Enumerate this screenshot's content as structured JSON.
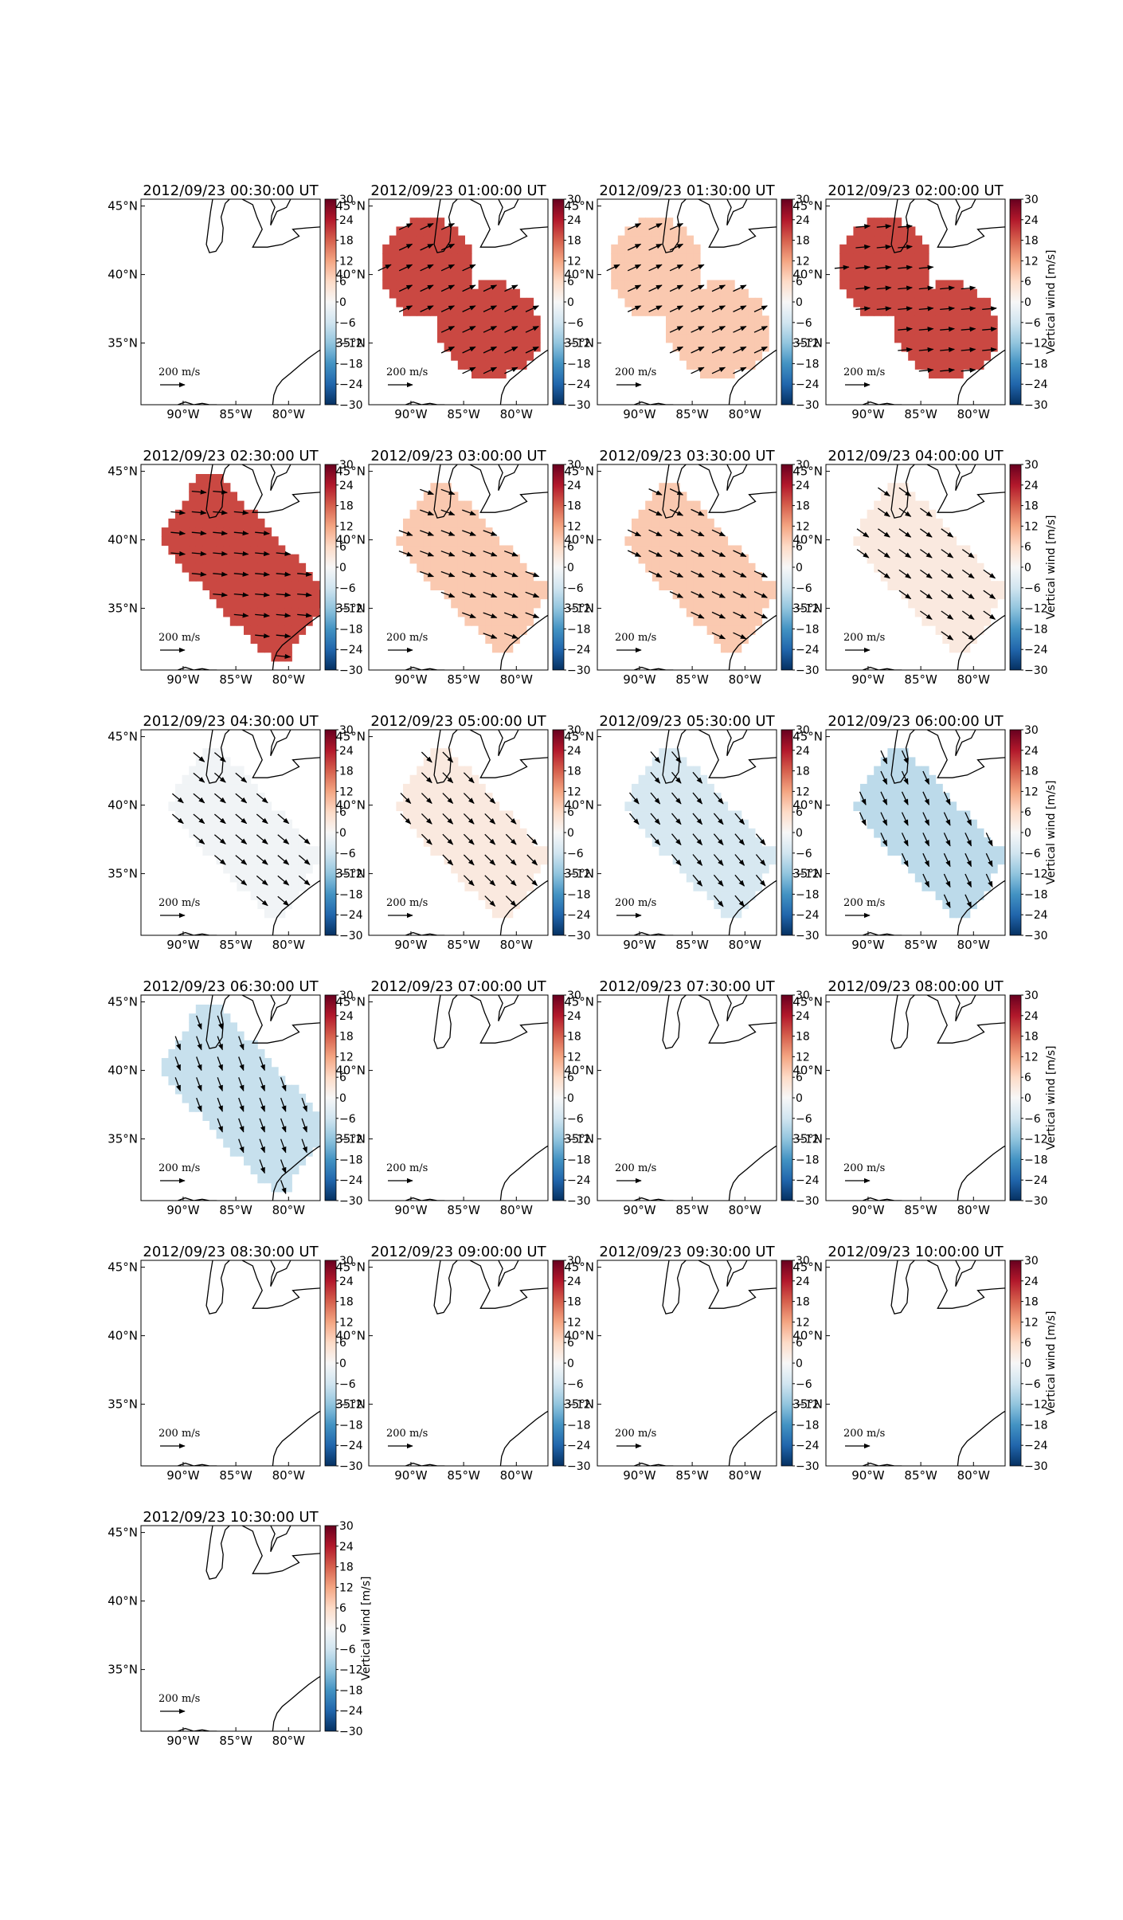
{
  "figure": {
    "scale_label": "200",
    "scale_unit": "m/s"
  },
  "chart_data": {
    "type": "heatmap",
    "quantity": "Vertical wind [m/s]",
    "colorbar": {
      "label": "Vertical wind [m/s]",
      "ticks": [
        30,
        24,
        18,
        12,
        6,
        0,
        -6,
        -12,
        -18,
        -24,
        -30
      ],
      "range": [
        -30,
        30
      ],
      "colormap": "RdBu_r",
      "color_max": "#67001f",
      "color_zero": "#f7f7f7",
      "color_min": "#053061"
    },
    "axes": {
      "lon_ticks": [
        "90°W",
        "85°W",
        "80°W"
      ],
      "lat_ticks": [
        "45°N",
        "40°N",
        "35°N"
      ],
      "lon_range": [
        -94,
        -77
      ],
      "lat_range": [
        30.5,
        45.5
      ]
    },
    "panels": [
      {
        "time": "2012/09/23 00:30:00 UT",
        "region": "none",
        "value": null,
        "arrow_dir": null
      },
      {
        "time": "2012/09/23 01:00:00 UT",
        "region": "two-lobes",
        "value": 20,
        "arrow_dir": 25
      },
      {
        "time": "2012/09/23 01:30:00 UT",
        "region": "two-lobes",
        "value": 8,
        "arrow_dir": 25
      },
      {
        "time": "2012/09/23 02:00:00 UT",
        "region": "two-lobes",
        "value": 20,
        "arrow_dir": 5
      },
      {
        "time": "2012/09/23 02:30:00 UT",
        "region": "diagonal-wide",
        "value": 20,
        "arrow_dir": -5
      },
      {
        "time": "2012/09/23 03:00:00 UT",
        "region": "diagonal",
        "value": 8,
        "arrow_dir": -20
      },
      {
        "time": "2012/09/23 03:30:00 UT",
        "region": "diagonal",
        "value": 8,
        "arrow_dir": -25
      },
      {
        "time": "2012/09/23 04:00:00 UT",
        "region": "diagonal",
        "value": 3,
        "arrow_dir": -35
      },
      {
        "time": "2012/09/23 04:30:00 UT",
        "region": "diagonal",
        "value": -1,
        "arrow_dir": -40
      },
      {
        "time": "2012/09/23 05:00:00 UT",
        "region": "diagonal",
        "value": 3,
        "arrow_dir": -45
      },
      {
        "time": "2012/09/23 05:30:00 UT",
        "region": "diagonal",
        "value": -5,
        "arrow_dir": -50
      },
      {
        "time": "2012/09/23 06:00:00 UT",
        "region": "diagonal",
        "value": -8,
        "arrow_dir": -65
      },
      {
        "time": "2012/09/23 06:30:00 UT",
        "region": "diagonal-wide",
        "value": -7,
        "arrow_dir": -70
      },
      {
        "time": "2012/09/23 07:00:00 UT",
        "region": "none",
        "value": null,
        "arrow_dir": null
      },
      {
        "time": "2012/09/23 07:30:00 UT",
        "region": "none",
        "value": null,
        "arrow_dir": null
      },
      {
        "time": "2012/09/23 08:00:00 UT",
        "region": "none",
        "value": null,
        "arrow_dir": null
      },
      {
        "time": "2012/09/23 08:30:00 UT",
        "region": "none",
        "value": null,
        "arrow_dir": null
      },
      {
        "time": "2012/09/23 09:00:00 UT",
        "region": "none",
        "value": null,
        "arrow_dir": null
      },
      {
        "time": "2012/09/23 09:30:00 UT",
        "region": "none",
        "value": null,
        "arrow_dir": null
      },
      {
        "time": "2012/09/23 10:00:00 UT",
        "region": "none",
        "value": null,
        "arrow_dir": null
      },
      {
        "time": "2012/09/23 10:30:00 UT",
        "region": "none",
        "value": null,
        "arrow_dir": null
      }
    ]
  }
}
